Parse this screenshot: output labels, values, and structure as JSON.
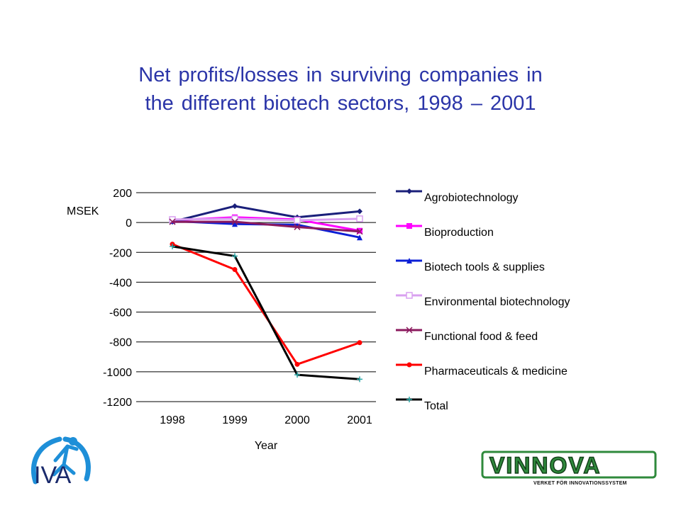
{
  "title": {
    "line1": "Net profits/losses in surviving companies in",
    "line2": "the different biotech sectors, 1998 – 2001"
  },
  "chart_data": {
    "type": "line",
    "title": "",
    "xlabel": "Year",
    "ylabel": "MSEK",
    "categories": [
      "1998",
      "1999",
      "2000",
      "2001"
    ],
    "ylim": [
      -1200,
      200
    ],
    "yticks": [
      "200",
      "0",
      "-200",
      "-400",
      "-600",
      "-800",
      "-1000",
      "-1200"
    ],
    "grid": "horizontal",
    "legend_position": "right",
    "series": [
      {
        "name": "Agrobiotechnology",
        "values": [
          5,
          110,
          35,
          75
        ],
        "color": "#1a1f7a",
        "marker": "diamond"
      },
      {
        "name": "Bioproduction",
        "values": [
          15,
          35,
          20,
          -55
        ],
        "color": "#ff00ff",
        "marker": "square"
      },
      {
        "name": "Biotech tools & supplies",
        "values": [
          10,
          -10,
          -15,
          -100
        ],
        "color": "#0b1fd6",
        "marker": "triangle"
      },
      {
        "name": "Environmental biotechnology",
        "values": [
          20,
          25,
          15,
          25
        ],
        "color": "#d9a0f0",
        "marker": "square-open"
      },
      {
        "name": "Functional food & feed",
        "values": [
          5,
          5,
          -30,
          -60
        ],
        "color": "#8b1a5e",
        "marker": "x"
      },
      {
        "name": "Pharmaceuticals & medicine",
        "values": [
          -145,
          -315,
          -950,
          -805
        ],
        "color": "#ff0000",
        "marker": "dot"
      },
      {
        "name": "Total",
        "values": [
          -160,
          -225,
          -1020,
          -1050
        ],
        "color": "#000000",
        "marker": "plus",
        "marker_color": "#2aa8a8"
      }
    ]
  },
  "logos": {
    "iva_text": "IVA",
    "vinnova_text": "VINNOVA",
    "vinnova_tagline": "VERKET FÖR INNOVATIONSSYSTEM"
  }
}
